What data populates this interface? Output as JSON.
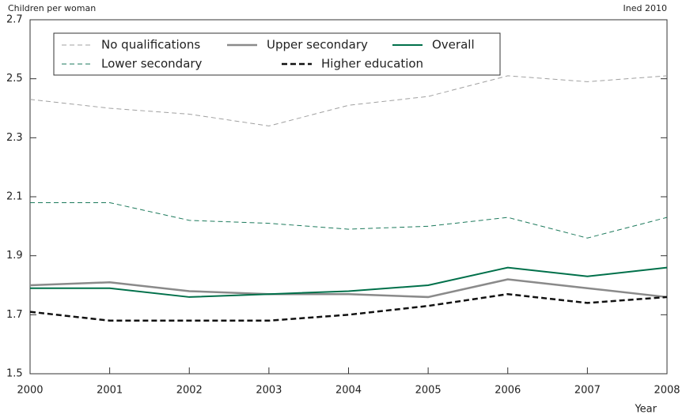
{
  "chart_data": {
    "type": "line",
    "ylabel": "Children per woman",
    "xlabel": "Year",
    "source": "Ined 2010",
    "x": [
      2000,
      2001,
      2002,
      2003,
      2004,
      2005,
      2006,
      2007,
      2008
    ],
    "xlim": [
      2000,
      2008
    ],
    "xticks": [
      2000,
      2001,
      2002,
      2003,
      2004,
      2005,
      2006,
      2007,
      2008
    ],
    "ylim": [
      1.5,
      2.7
    ],
    "yticks": [
      1.5,
      1.7,
      1.9,
      2.1,
      2.3,
      2.5,
      2.7
    ],
    "legend": "upper left",
    "grid": false,
    "series": [
      {
        "name": "No qualifications",
        "color": "#a0a0a0",
        "dash": true,
        "width": 1,
        "values": [
          2.43,
          2.4,
          2.38,
          2.34,
          2.41,
          2.44,
          2.51,
          2.49,
          2.51
        ]
      },
      {
        "name": "Lower secondary",
        "color": "#1d7a5c",
        "dash": true,
        "width": 1,
        "values": [
          2.08,
          2.08,
          2.02,
          2.01,
          1.99,
          2.0,
          2.03,
          1.96,
          2.03
        ]
      },
      {
        "name": "Upper secondary",
        "color": "#8a8a8a",
        "dash": false,
        "width": 2.5,
        "values": [
          1.8,
          1.81,
          1.78,
          1.77,
          1.77,
          1.76,
          1.82,
          1.79,
          1.76
        ]
      },
      {
        "name": "Overall",
        "color": "#00704a",
        "dash": false,
        "width": 2,
        "values": [
          1.79,
          1.79,
          1.76,
          1.77,
          1.78,
          1.8,
          1.86,
          1.83,
          1.86
        ]
      },
      {
        "name": "Higher education",
        "color": "#111111",
        "dash": true,
        "width": 2.5,
        "values": [
          1.71,
          1.68,
          1.68,
          1.68,
          1.7,
          1.73,
          1.77,
          1.74,
          1.76
        ]
      }
    ]
  }
}
